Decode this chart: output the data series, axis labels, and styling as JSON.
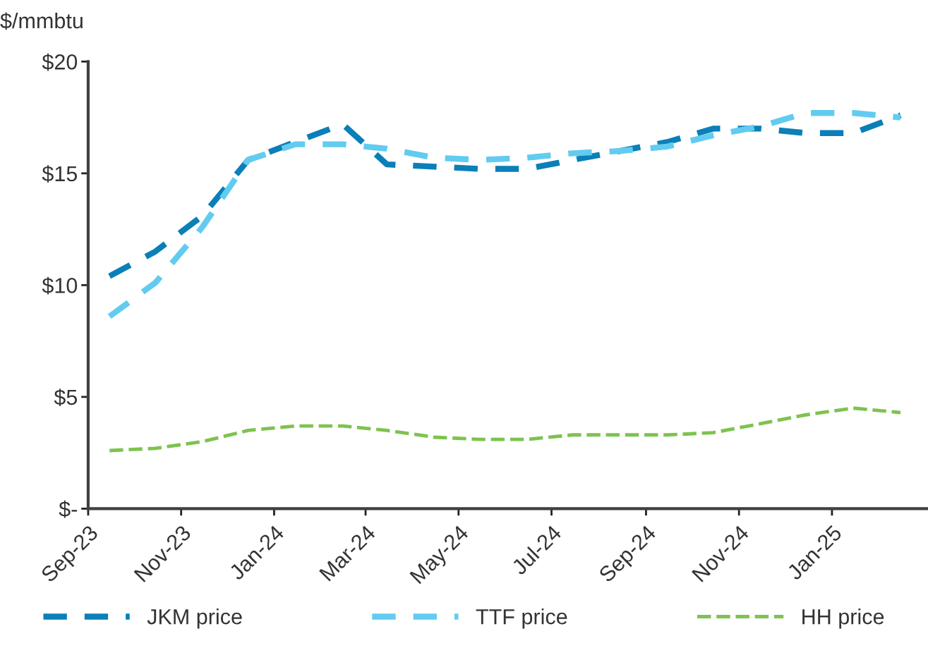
{
  "chart_data": {
    "type": "line",
    "ylabel": "$/mmbtu",
    "x": [
      "2023-09-15",
      "2023-10-15",
      "2023-11-15",
      "2023-12-15",
      "2024-01-15",
      "2024-02-15",
      "2024-03-15",
      "2024-04-15",
      "2024-05-15",
      "2024-06-15",
      "2024-07-15",
      "2024-08-15",
      "2024-09-15",
      "2024-10-15",
      "2024-11-15",
      "2024-12-15",
      "2025-01-15",
      "2025-02-15"
    ],
    "xlim": [
      "2023-09-01",
      "2025-03-05"
    ],
    "xticks": [
      {
        "value": "2023-09-01",
        "label": "Sep-23"
      },
      {
        "value": "2023-11-01",
        "label": "Nov-23"
      },
      {
        "value": "2024-01-01",
        "label": "Jan-24"
      },
      {
        "value": "2024-03-01",
        "label": "Mar-24"
      },
      {
        "value": "2024-05-01",
        "label": "May-24"
      },
      {
        "value": "2024-07-01",
        "label": "Jul-24"
      },
      {
        "value": "2024-09-01",
        "label": "Sep-24"
      },
      {
        "value": "2024-11-01",
        "label": "Nov-24"
      },
      {
        "value": "2025-01-01",
        "label": "Jan-25"
      }
    ],
    "ylim": [
      0,
      20
    ],
    "yticks": [
      {
        "value": 0,
        "label": "$-"
      },
      {
        "value": 5,
        "label": "$5"
      },
      {
        "value": 10,
        "label": "$10"
      },
      {
        "value": 15,
        "label": "$15"
      },
      {
        "value": 20,
        "label": "$20"
      }
    ],
    "series": [
      {
        "name": "JKM price",
        "color": "#0a7fb8",
        "values": [
          10.4,
          11.5,
          13.1,
          15.6,
          16.4,
          17.2,
          15.4,
          15.3,
          15.2,
          15.2,
          15.6,
          16.0,
          16.4,
          17.0,
          17.0,
          16.8,
          16.8,
          17.6
        ]
      },
      {
        "name": "TTF price",
        "color": "#62cbf0",
        "values": [
          8.6,
          10.1,
          12.6,
          15.6,
          16.3,
          16.3,
          16.1,
          15.7,
          15.6,
          15.7,
          15.9,
          16.0,
          16.2,
          16.7,
          17.1,
          17.7,
          17.7,
          17.5
        ]
      },
      {
        "name": "HH price",
        "color": "#7dc34f",
        "values": [
          2.6,
          2.7,
          3.0,
          3.5,
          3.7,
          3.7,
          3.5,
          3.2,
          3.1,
          3.1,
          3.3,
          3.3,
          3.3,
          3.4,
          3.8,
          4.2,
          4.5,
          4.3
        ]
      }
    ],
    "line_style": "dashed",
    "grid": false,
    "legend": "bottom"
  }
}
